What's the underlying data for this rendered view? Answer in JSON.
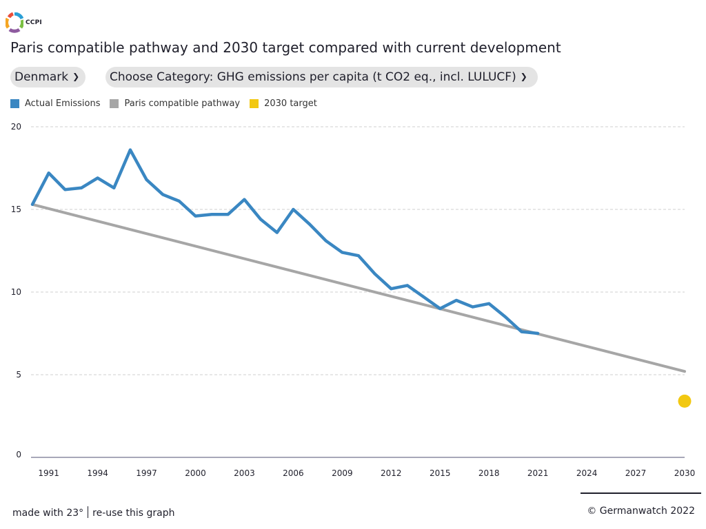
{
  "brand": {
    "name": "CCPI",
    "logo_colors": [
      "#2a9fd6",
      "#f5a623",
      "#7bc043",
      "#8e5b9f",
      "#e94e3b"
    ]
  },
  "title": "Paris compatible pathway and 2030 target compared with current development",
  "country_select": {
    "value": "Denmark"
  },
  "category_select": {
    "value": "Choose Category: GHG emissions per capita (t CO2 eq., incl. LULUCF)"
  },
  "legend": [
    {
      "label": "Actual Emissions",
      "color": "#3a87c2"
    },
    {
      "label": "Paris compatible pathway",
      "color": "#a6a6a6"
    },
    {
      "label": "2030 target",
      "color": "#f2c811"
    }
  ],
  "footer": {
    "made_with": "made with 23°",
    "reuse": "re-use this graph",
    "copyright": "©  Germanwatch 2022"
  },
  "chart_data": {
    "type": "line",
    "title": "Paris compatible pathway and 2030 target compared with current development",
    "xlabel": "",
    "ylabel": "",
    "xlim": [
      1990,
      2030
    ],
    "ylim": [
      0,
      20
    ],
    "y_ticks": [
      0,
      5,
      10,
      15,
      20
    ],
    "x_ticks": [
      1991,
      1994,
      1997,
      2000,
      2003,
      2006,
      2009,
      2012,
      2015,
      2018,
      2021,
      2024,
      2027,
      2030
    ],
    "grid": true,
    "series": [
      {
        "name": "Actual Emissions",
        "color": "#3a87c2",
        "x": [
          1990,
          1991,
          1992,
          1993,
          1994,
          1995,
          1996,
          1997,
          1998,
          1999,
          2000,
          2001,
          2002,
          2003,
          2004,
          2005,
          2006,
          2007,
          2008,
          2009,
          2010,
          2011,
          2012,
          2013,
          2014,
          2015,
          2016,
          2017,
          2018,
          2019,
          2020,
          2021
        ],
        "values": [
          15.3,
          17.2,
          16.2,
          16.3,
          16.9,
          16.3,
          18.6,
          16.8,
          15.9,
          15.5,
          14.6,
          14.7,
          14.7,
          15.6,
          14.4,
          13.6,
          15.0,
          14.1,
          13.1,
          12.4,
          12.2,
          11.1,
          10.2,
          10.4,
          9.7,
          9.0,
          9.5,
          9.1,
          9.3,
          8.5,
          7.6,
          7.5
        ]
      },
      {
        "name": "Paris compatible pathway",
        "color": "#a6a6a6",
        "x": [
          1990,
          2030
        ],
        "values": [
          15.3,
          5.2
        ]
      },
      {
        "name": "2030 target",
        "color": "#f2c811",
        "type": "scatter",
        "x": [
          2030
        ],
        "values": [
          3.4
        ]
      }
    ]
  }
}
